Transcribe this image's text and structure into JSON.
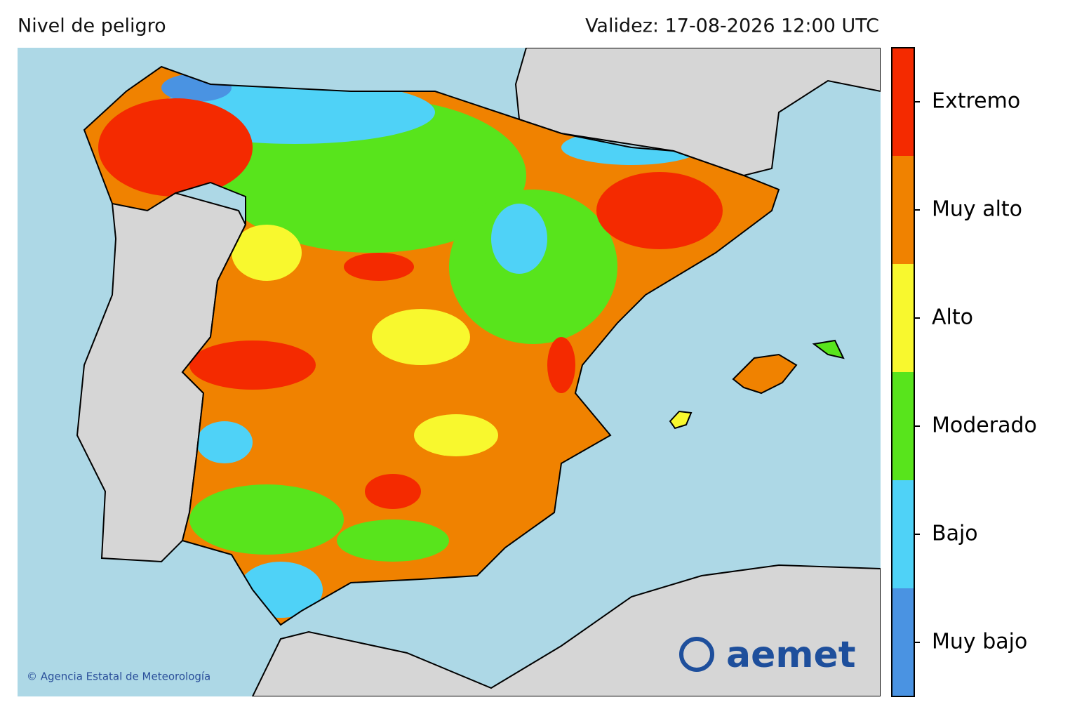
{
  "header": {
    "title": "Nivel de peligro",
    "validity": "Validez: 17-08-2026 12:00 UTC"
  },
  "legend": {
    "levels": [
      {
        "label": "Extremo",
        "color": "#f42a00"
      },
      {
        "label": "Muy alto",
        "color": "#f08200"
      },
      {
        "label": "Alto",
        "color": "#f8f82e"
      },
      {
        "label": "Moderado",
        "color": "#58e41c"
      },
      {
        "label": "Bajo",
        "color": "#4fd2f7"
      },
      {
        "label": "Muy bajo",
        "color": "#4a93e2"
      }
    ]
  },
  "credit": "© Agencia Estatal de Meteorología",
  "logo": "aemet"
}
